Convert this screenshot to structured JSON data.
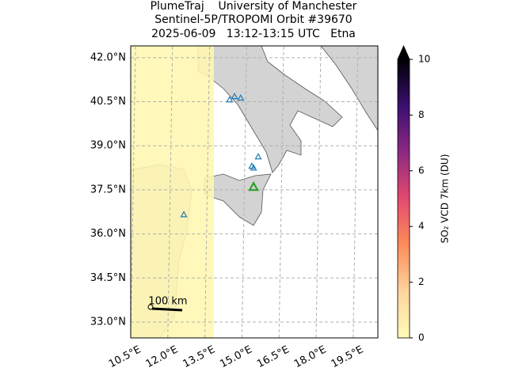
{
  "chart_data": {
    "type": "map",
    "title": [
      "PlumeTraj    University of Manchester",
      "Sentinel-5P/TROPOMI Orbit #39670",
      "2025-06-09   13:12-13:15 UTC   Etna"
    ],
    "xlim": [
      10.5,
      20.5
    ],
    "ylim": [
      32.46,
      42.4
    ],
    "xticks": [
      {
        "value": 10.5,
        "label": "10.5°E"
      },
      {
        "value": 12,
        "label": "12.0°E"
      },
      {
        "value": 13.5,
        "label": "13.5°E"
      },
      {
        "value": 15,
        "label": "15.0°E"
      },
      {
        "value": 16.5,
        "label": "16.5°E"
      },
      {
        "value": 18,
        "label": "18.0°E"
      },
      {
        "value": 19.5,
        "label": "19.5°E"
      }
    ],
    "yticks": [
      {
        "value": 33,
        "label": "33.0°N"
      },
      {
        "value": 34.5,
        "label": "34.5°N"
      },
      {
        "value": 36,
        "label": "36.0°N"
      },
      {
        "value": 37.5,
        "label": "37.5°N"
      },
      {
        "value": 39,
        "label": "39.0°N"
      },
      {
        "value": 40.5,
        "label": "40.5°N"
      },
      {
        "value": 42,
        "label": "42.0°N"
      }
    ],
    "grid": true,
    "volcanoes": {
      "color": "#1f77b4",
      "lon": [
        14.5,
        14.7,
        14.95,
        15.4,
        15.47,
        15.66,
        12.65
      ],
      "lat": [
        40.57,
        40.68,
        40.63,
        38.31,
        38.25,
        38.63,
        36.66
      ]
    },
    "target": {
      "color": "#2ca02c",
      "lon": 15.47,
      "lat": 37.6
    },
    "scale_bar": "100 km",
    "colorbar": {
      "label": "SO₂ VCD 7km (DU)",
      "clim": [
        0,
        10
      ],
      "ticks": [
        0,
        2,
        4,
        6,
        8,
        10
      ],
      "colors": [
        "#fffbb8",
        "#fdd49e",
        "#fc8d59",
        "#e34a6f",
        "#8c2981",
        "#3b0f70",
        "#000004"
      ]
    }
  }
}
